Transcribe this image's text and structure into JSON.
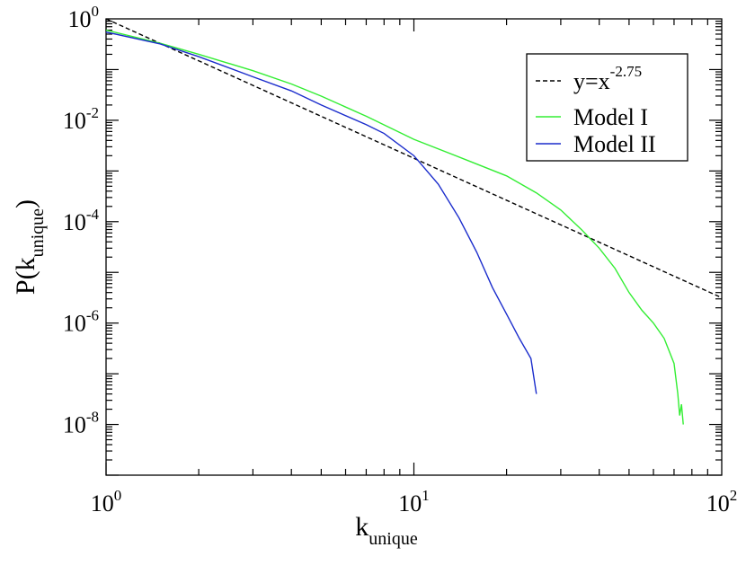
{
  "chart_data": {
    "type": "line",
    "x_scale": "log",
    "y_scale": "log",
    "xlim": [
      1,
      100
    ],
    "ylim": [
      1e-09,
      1
    ],
    "xlabel": {
      "base": "k",
      "sub": "unique"
    },
    "ylabel": {
      "prefix": "P(k",
      "sub": "unique",
      "suffix": ")"
    },
    "x_ticks": [
      {
        "value": 1,
        "base": "10",
        "exp": "0"
      },
      {
        "value": 10,
        "base": "10",
        "exp": "1"
      },
      {
        "value": 100,
        "base": "10",
        "exp": "2"
      }
    ],
    "y_ticks": [
      {
        "value": 1,
        "base": "10",
        "exp": "0"
      },
      {
        "value": 0.01,
        "base": "10",
        "exp": "-2"
      },
      {
        "value": 0.0001,
        "base": "10",
        "exp": "-4"
      },
      {
        "value": 1e-06,
        "base": "10",
        "exp": "-6"
      },
      {
        "value": 1e-08,
        "base": "10",
        "exp": "-8"
      }
    ],
    "legend_position": "top-right",
    "series": [
      {
        "name": "y=x",
        "name_sup": "-2.75",
        "color": "#000000",
        "style": "dashed",
        "x": [
          1,
          100
        ],
        "y": [
          1,
          3.16e-06
        ]
      },
      {
        "name": "Model I",
        "color": "#33ee33",
        "style": "solid",
        "x": [
          1,
          1.5,
          2,
          3,
          4,
          5,
          7,
          10,
          15,
          20,
          25,
          30,
          35,
          40,
          45,
          50,
          55,
          60,
          65,
          70,
          72,
          73,
          74,
          75
        ],
        "y": [
          0.6,
          0.33,
          0.2,
          0.095,
          0.052,
          0.03,
          0.012,
          0.0042,
          0.0016,
          0.0008,
          0.00037,
          0.00017,
          7e-05,
          3e-05,
          1.2e-05,
          4e-06,
          1.8e-06,
          1e-06,
          5e-07,
          1.6e-07,
          4e-08,
          1.5e-08,
          2.5e-08,
          1e-08
        ]
      },
      {
        "name": "Model II",
        "color": "#1a2ccc",
        "style": "solid",
        "x": [
          1,
          1.5,
          2,
          3,
          4,
          5,
          7,
          8,
          10,
          12,
          14,
          16,
          18,
          20,
          22,
          24,
          25
        ],
        "y": [
          0.55,
          0.32,
          0.18,
          0.072,
          0.038,
          0.02,
          0.0082,
          0.0055,
          0.002,
          0.00055,
          0.00012,
          2.5e-05,
          5e-06,
          1.5e-06,
          5e-07,
          2e-07,
          4e-08
        ]
      }
    ]
  }
}
